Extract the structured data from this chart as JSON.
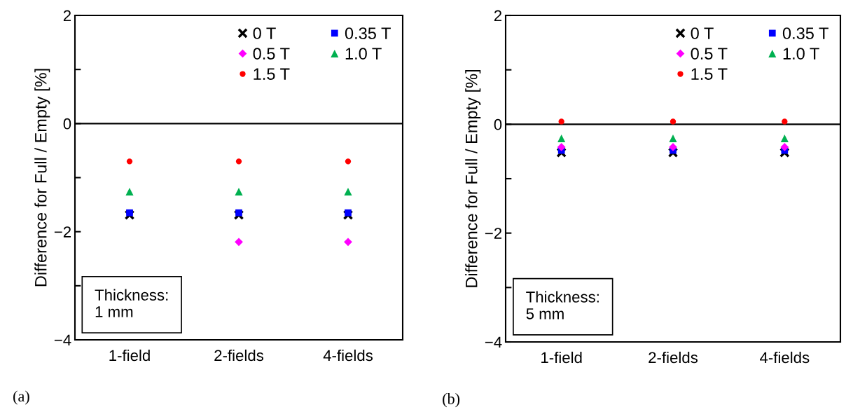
{
  "chart_data": [
    {
      "type": "scatter",
      "ylabel": "Difference for Full / Empty [%]",
      "categories": [
        "1-field",
        "2-fields",
        "4-fields"
      ],
      "ylim": [
        -4,
        2
      ],
      "yticks": [
        -4,
        -2,
        0,
        2
      ],
      "grid": false,
      "legend": "top right",
      "ref_lines": [
        {
          "axis": "y",
          "value": 0,
          "color": "#000000"
        }
      ],
      "annotations": [
        "Thickness:\n1 mm",
        "(a)"
      ],
      "series": [
        {
          "name": "0 T",
          "color": "#000000",
          "marker": "cross",
          "values": [
            -1.69,
            -1.69,
            -1.69
          ]
        },
        {
          "name": "0.35 T",
          "color": "#0000ff",
          "marker": "square",
          "values": [
            -1.65,
            -1.65,
            -1.65
          ]
        },
        {
          "name": "0.5 T",
          "color": "#ff00ff",
          "marker": "diamond",
          "values": [
            null,
            -2.19,
            -2.19
          ]
        },
        {
          "name": "1.0 T",
          "color": "#00b050",
          "marker": "triangle",
          "values": [
            -1.26,
            -1.26,
            -1.26
          ]
        },
        {
          "name": "1.5 T",
          "color": "#ff0000",
          "marker": "circle",
          "values": [
            -0.7,
            -0.7,
            -0.7
          ]
        }
      ]
    },
    {
      "type": "scatter",
      "ylabel": "Difference for Full / Empty [%]",
      "categories": [
        "1-field",
        "2-fields",
        "4-fields"
      ],
      "ylim": [
        -4,
        2
      ],
      "yticks": [
        -4,
        -2,
        0,
        2
      ],
      "grid": false,
      "legend": "top right",
      "ref_lines": [
        {
          "axis": "y",
          "value": 0,
          "color": "#000000"
        }
      ],
      "annotations": [
        "Thickness:\n5 mm",
        "(b)"
      ],
      "series": [
        {
          "name": "0 T",
          "color": "#000000",
          "marker": "cross",
          "values": [
            -0.52,
            -0.52,
            -0.52
          ]
        },
        {
          "name": "0.35 T",
          "color": "#0000ff",
          "marker": "square",
          "values": [
            -0.48,
            -0.48,
            -0.48
          ]
        },
        {
          "name": "0.5 T",
          "color": "#ff00ff",
          "marker": "diamond",
          "values": [
            -0.42,
            -0.42,
            -0.42
          ]
        },
        {
          "name": "1.0 T",
          "color": "#00b050",
          "marker": "triangle",
          "values": [
            -0.26,
            -0.26,
            -0.26
          ]
        },
        {
          "name": "1.5 T",
          "color": "#ff0000",
          "marker": "circle",
          "values": [
            0.05,
            0.05,
            0.05
          ]
        }
      ]
    }
  ]
}
